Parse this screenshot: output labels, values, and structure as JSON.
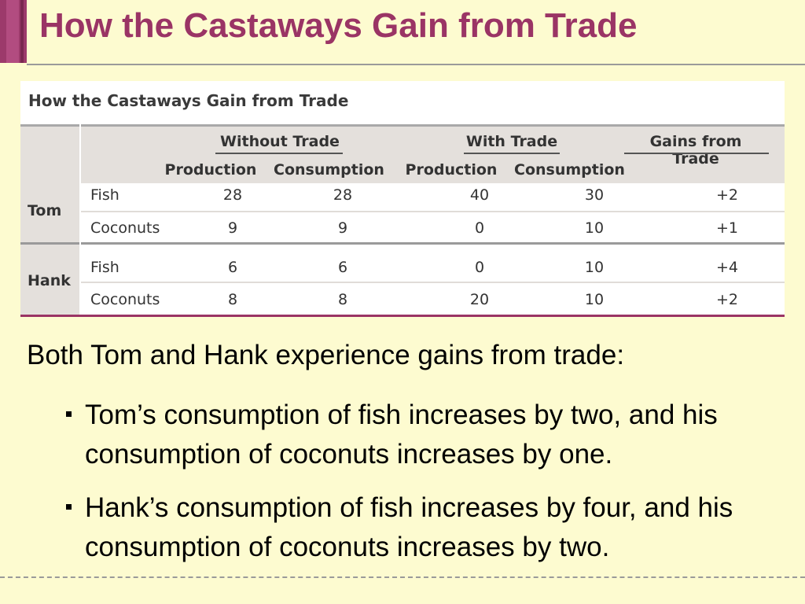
{
  "slide": {
    "title": "How the Castaways Gain from Trade"
  },
  "table": {
    "caption": "How the Castaways Gain from Trade",
    "groups": [
      "Without Trade",
      "With Trade",
      "Gains from Trade"
    ],
    "subheaders": [
      "Production",
      "Consumption",
      "Production",
      "Consumption"
    ],
    "people": [
      {
        "name": "Tom",
        "rows": [
          {
            "item": "Fish",
            "values": [
              "28",
              "28",
              "40",
              "30",
              "+2"
            ]
          },
          {
            "item": "Coconuts",
            "values": [
              "9",
              "9",
              "0",
              "10",
              "+1"
            ]
          }
        ]
      },
      {
        "name": "Hank",
        "rows": [
          {
            "item": "Fish",
            "values": [
              "6",
              "6",
              "0",
              "10",
              "+4"
            ]
          },
          {
            "item": "Coconuts",
            "values": [
              "8",
              "8",
              "20",
              "10",
              "+2"
            ]
          }
        ]
      }
    ]
  },
  "text": {
    "intro": "Both Tom and Hank experience gains from trade:",
    "bullets": [
      "Tom’s consumption of fish increases by two, and his consumption of coconuts increases by one.",
      "Hank’s consumption of fish increases by four, and his consumption of coconuts increases by two."
    ]
  },
  "colors": {
    "background": "#fdfbd0",
    "title": "#9a3465",
    "accent": "#9c3a6b",
    "table_header": "#e4e0dc"
  }
}
